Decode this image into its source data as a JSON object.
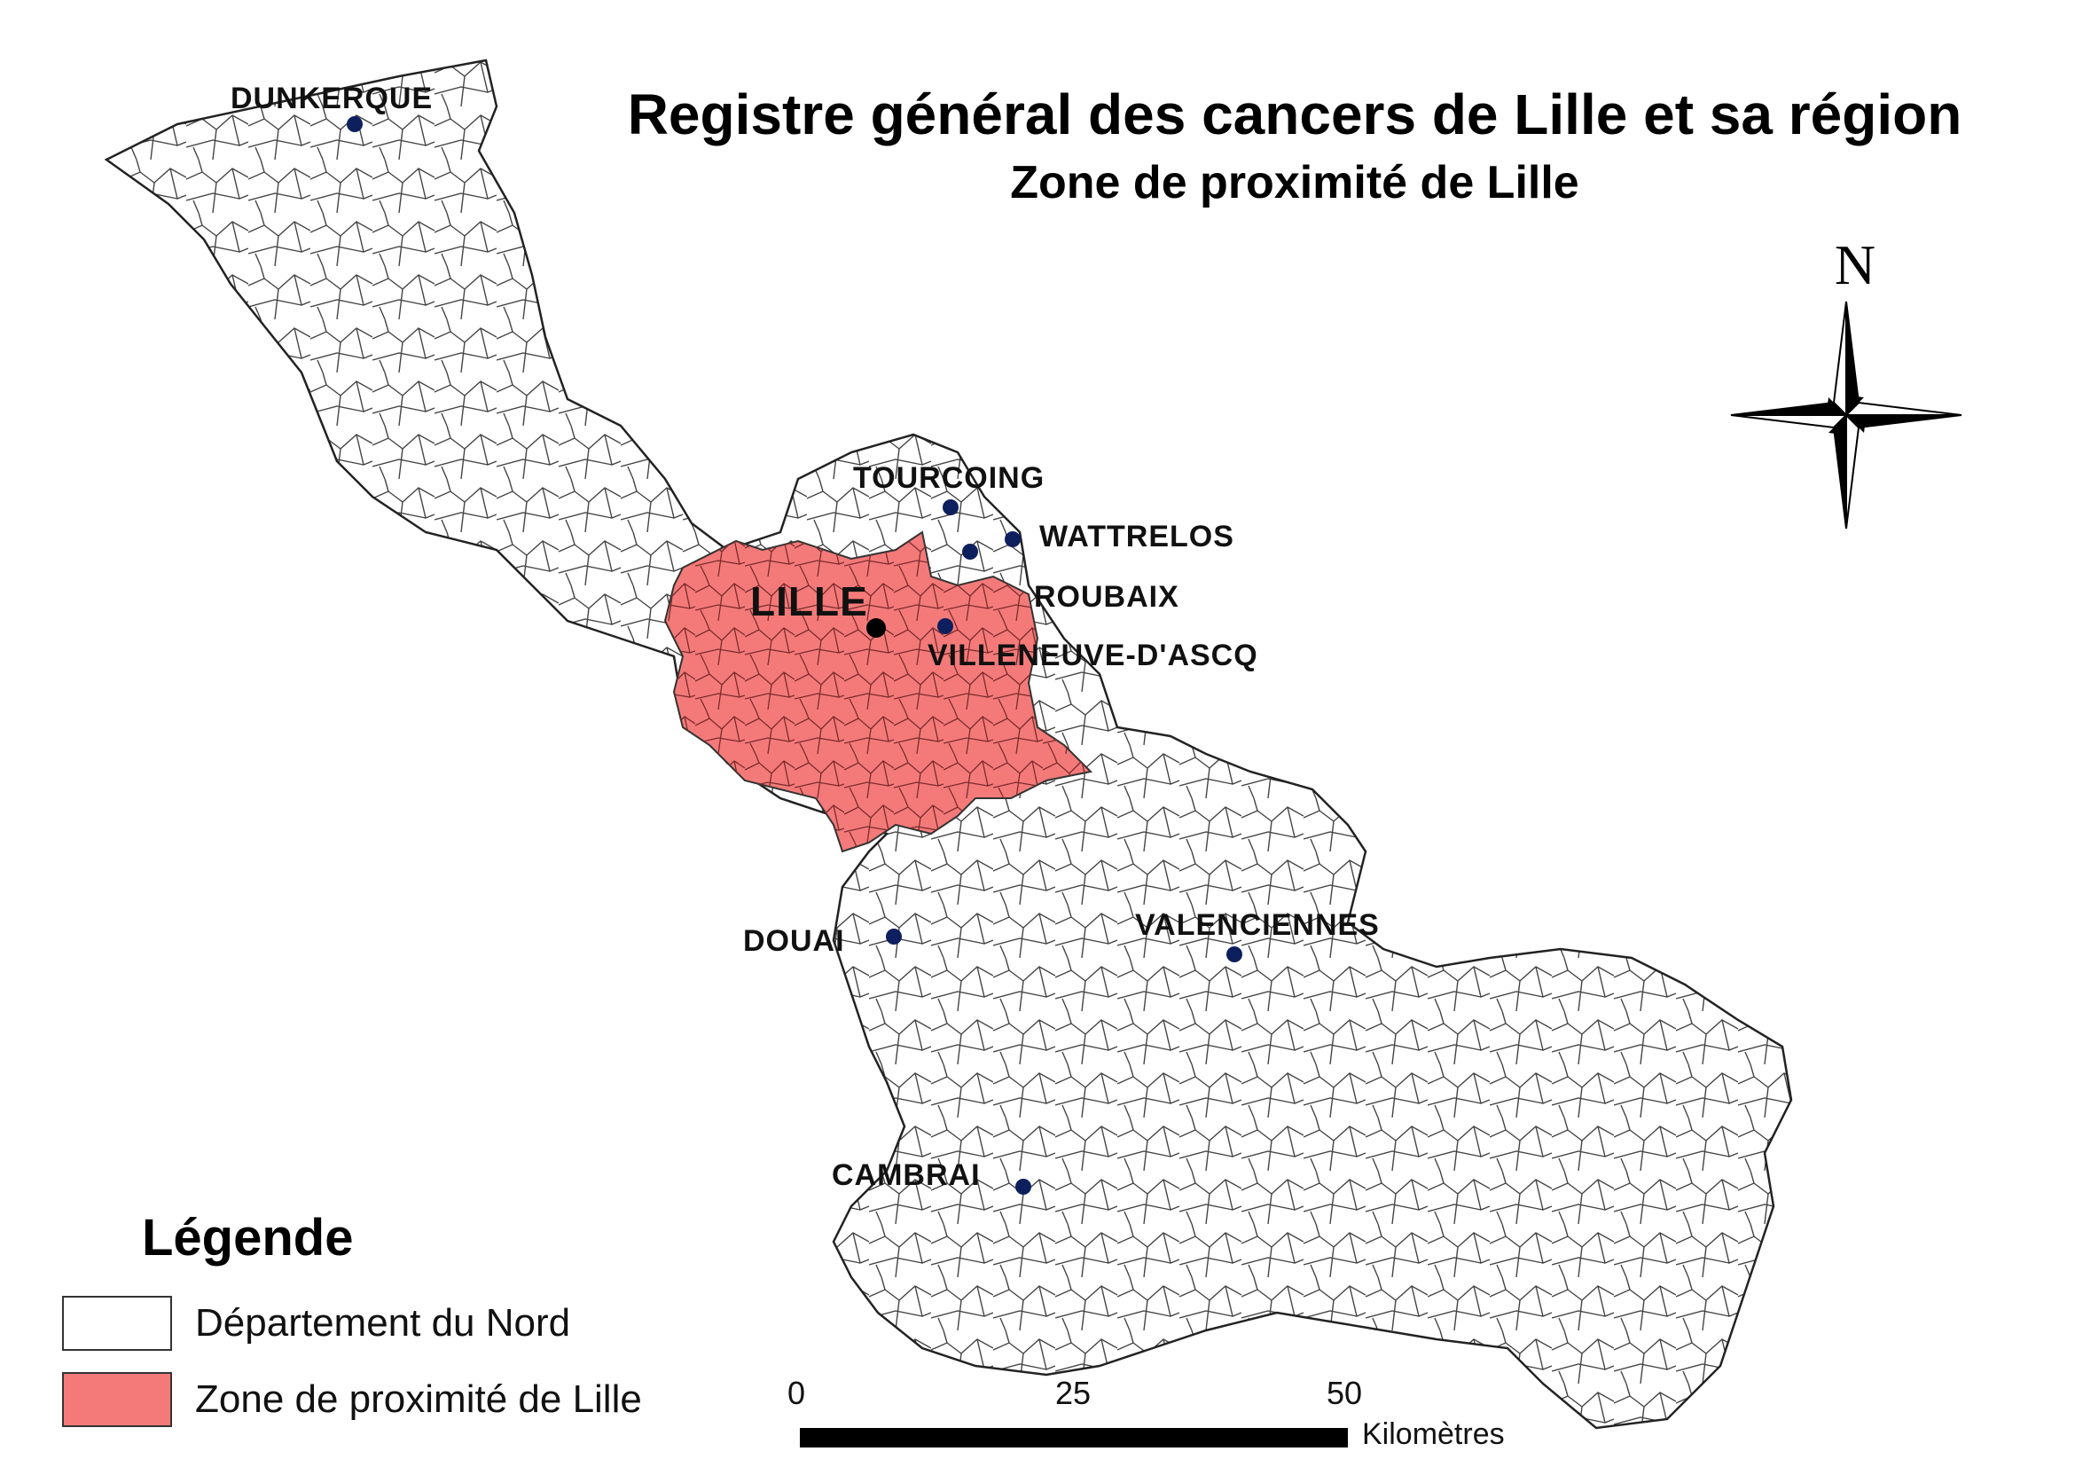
{
  "title": "Registre général des cancers de Lille et sa région",
  "subtitle": "Zone de proximité de Lille",
  "north_label": "N",
  "colors": {
    "department_fill": "#ffffff",
    "zone_fill": "#f47a7a",
    "border": "#333333",
    "city_dot": "#0d1f5c",
    "major_dot": "#000000"
  },
  "cities": [
    {
      "name": "DUNKERQUE"
    },
    {
      "name": "TOURCOING"
    },
    {
      "name": "WATTRELOS"
    },
    {
      "name": "ROUBAIX"
    },
    {
      "name": "LILLE"
    },
    {
      "name": "VILLENEUVE-D'ASCQ"
    },
    {
      "name": "DOUAI"
    },
    {
      "name": "VALENCIENNES"
    },
    {
      "name": "CAMBRAI"
    }
  ],
  "legend": {
    "title": "Légende",
    "items": [
      {
        "label": "Département du Nord"
      },
      {
        "label": "Zone de proximité de Lille"
      }
    ]
  },
  "scale": {
    "ticks": [
      "0",
      "25",
      "50"
    ],
    "unit": "Kilomètres"
  }
}
